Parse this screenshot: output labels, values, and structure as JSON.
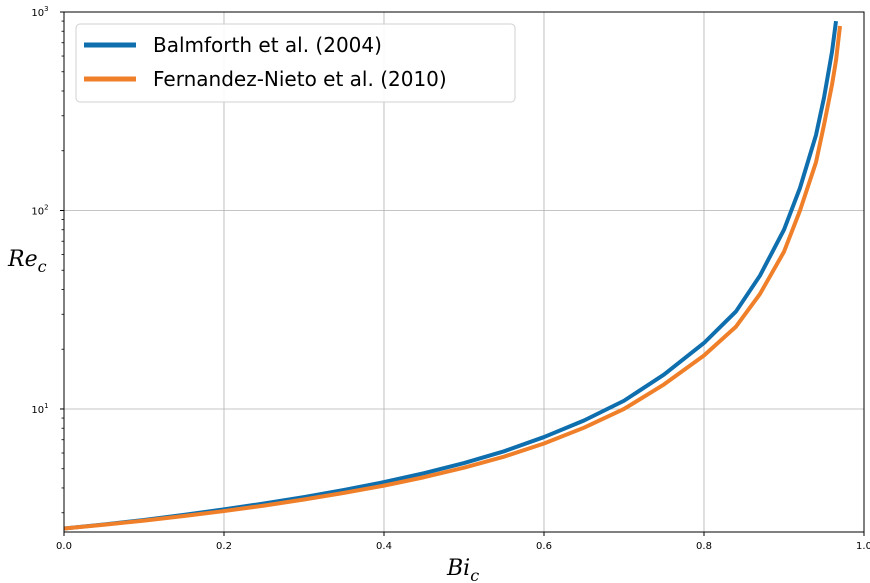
{
  "chart_data": {
    "type": "line",
    "title": "",
    "xlabel_main": "Bi",
    "xlabel_sub": "c",
    "ylabel_main": "Re",
    "ylabel_sub": "c",
    "xlim": [
      0.0,
      1.0
    ],
    "ylim": [
      2.4,
      1000
    ],
    "yscale": "log",
    "grid": true,
    "legend_position": "top-left",
    "x_ticks": [
      {
        "value": 0.0,
        "label": "0.0"
      },
      {
        "value": 0.2,
        "label": "0.2"
      },
      {
        "value": 0.4,
        "label": "0.4"
      },
      {
        "value": 0.6,
        "label": "0.6"
      },
      {
        "value": 0.8,
        "label": "0.8"
      },
      {
        "value": 1.0,
        "label": "1.0"
      }
    ],
    "y_ticks": [
      {
        "value": 10,
        "base": "10",
        "exp": "1"
      },
      {
        "value": 100,
        "base": "10",
        "exp": "2"
      },
      {
        "value": 1000,
        "base": "10",
        "exp": "3"
      }
    ],
    "series": [
      {
        "name": "Balmforth et al. (2004)",
        "color": "#0f6fae",
        "x": [
          0.0,
          0.05,
          0.1,
          0.15,
          0.2,
          0.25,
          0.3,
          0.35,
          0.4,
          0.45,
          0.5,
          0.55,
          0.6,
          0.65,
          0.7,
          0.75,
          0.8,
          0.84,
          0.87,
          0.9,
          0.92,
          0.94,
          0.95,
          0.96,
          0.965
        ],
        "y": [
          2.5,
          2.62,
          2.76,
          2.93,
          3.12,
          3.34,
          3.6,
          3.91,
          4.28,
          4.75,
          5.34,
          6.12,
          7.22,
          8.75,
          11.0,
          14.9,
          21.5,
          31.0,
          47.0,
          80.0,
          130.0,
          240.0,
          370.0,
          630.0,
          900.0
        ]
      },
      {
        "name": "Fernandez-Nieto et al. (2010)",
        "color": "#f07f2a",
        "x": [
          0.0,
          0.05,
          0.1,
          0.15,
          0.2,
          0.25,
          0.3,
          0.35,
          0.4,
          0.45,
          0.5,
          0.55,
          0.6,
          0.65,
          0.7,
          0.75,
          0.8,
          0.84,
          0.87,
          0.9,
          0.92,
          0.94,
          0.95,
          0.96,
          0.965,
          0.97
        ],
        "y": [
          2.5,
          2.61,
          2.74,
          2.89,
          3.06,
          3.26,
          3.5,
          3.78,
          4.11,
          4.53,
          5.06,
          5.75,
          6.7,
          8.05,
          10.0,
          13.3,
          18.6,
          26.0,
          38.0,
          62.0,
          100.0,
          175.0,
          270.0,
          430.0,
          570.0,
          850.0
        ]
      }
    ]
  }
}
